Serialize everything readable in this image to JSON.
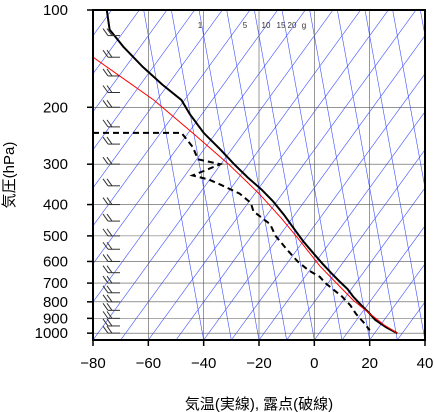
{
  "chart_data": {
    "type": "line",
    "title": "",
    "xlabel": "気温(実線), 露点(破線)",
    "ylabel": "気圧(hPa)",
    "x_ticks": [
      -80,
      -60,
      -40,
      -20,
      0,
      20,
      40
    ],
    "x_tick_labels": [
      "−80",
      "−60",
      "−40",
      "−20",
      "0",
      "20",
      "40"
    ],
    "xlim": [
      -80,
      40
    ],
    "y_scale": "log",
    "ylim": [
      1050,
      100
    ],
    "y_ticks": [
      100,
      200,
      300,
      400,
      500,
      600,
      700,
      800,
      900,
      1000
    ],
    "y_tick_labels": [
      "100",
      "200",
      "300",
      "400",
      "500",
      "600",
      "700",
      "800",
      "900",
      "1000"
    ],
    "mixing_ratio_labels": [
      "1",
      "5",
      "10",
      "15",
      "20",
      "g"
    ],
    "grid": true,
    "series": [
      {
        "style": "solid",
        "color": "#000000",
        "points": [
          [
            -75,
            100
          ],
          [
            -74,
            115
          ],
          [
            -69,
            130
          ],
          [
            -62,
            150
          ],
          [
            -55,
            170
          ],
          [
            -48,
            190
          ],
          [
            -45,
            210
          ],
          [
            -40,
            240
          ],
          [
            -34,
            270
          ],
          [
            -29,
            300
          ],
          [
            -24,
            330
          ],
          [
            -19,
            360
          ],
          [
            -15,
            390
          ],
          [
            -11,
            430
          ],
          [
            -7,
            480
          ],
          [
            -4,
            520
          ],
          [
            0,
            570
          ],
          [
            3,
            610
          ],
          [
            6,
            650
          ],
          [
            9,
            690
          ],
          [
            12,
            730
          ],
          [
            14,
            770
          ],
          [
            17,
            820
          ],
          [
            20,
            870
          ],
          [
            22,
            910
          ],
          [
            26,
            960
          ],
          [
            30,
            1000
          ]
        ]
      },
      {
        "style": "dashed",
        "color": "#000000",
        "points": [
          [
            -80,
            240
          ],
          [
            -72,
            240
          ],
          [
            -48,
            240
          ],
          [
            -44,
            265
          ],
          [
            -42,
            290
          ],
          [
            -34,
            300
          ],
          [
            -40,
            315
          ],
          [
            -44,
            325
          ],
          [
            -38,
            335
          ],
          [
            -33,
            350
          ],
          [
            -27,
            370
          ],
          [
            -23,
            395
          ],
          [
            -22,
            420
          ],
          [
            -16,
            460
          ],
          [
            -14,
            500
          ],
          [
            -10,
            550
          ],
          [
            -6,
            600
          ],
          [
            -2,
            640
          ],
          [
            2,
            670
          ],
          [
            4,
            700
          ],
          [
            10,
            770
          ],
          [
            13,
            820
          ],
          [
            15,
            870
          ],
          [
            18,
            930
          ],
          [
            20,
            980
          ]
        ]
      },
      {
        "style": "solid",
        "color": "#ff0000",
        "points": [
          [
            -80,
            140
          ],
          [
            -58,
            190
          ],
          [
            -44,
            240
          ],
          [
            -31,
            300
          ],
          [
            -20,
            370
          ],
          [
            -12,
            440
          ],
          [
            -5,
            520
          ],
          [
            2,
            620
          ],
          [
            8,
            700
          ],
          [
            14,
            790
          ],
          [
            20,
            870
          ],
          [
            25,
            940
          ],
          [
            30,
            1000
          ]
        ]
      }
    ],
    "wind_barbs_pressures": [
      120,
      140,
      160,
      180,
      200,
      230,
      260,
      300,
      350,
      400,
      450,
      500,
      550,
      600,
      650,
      700,
      750,
      800,
      850,
      900,
      950,
      1000
    ]
  }
}
